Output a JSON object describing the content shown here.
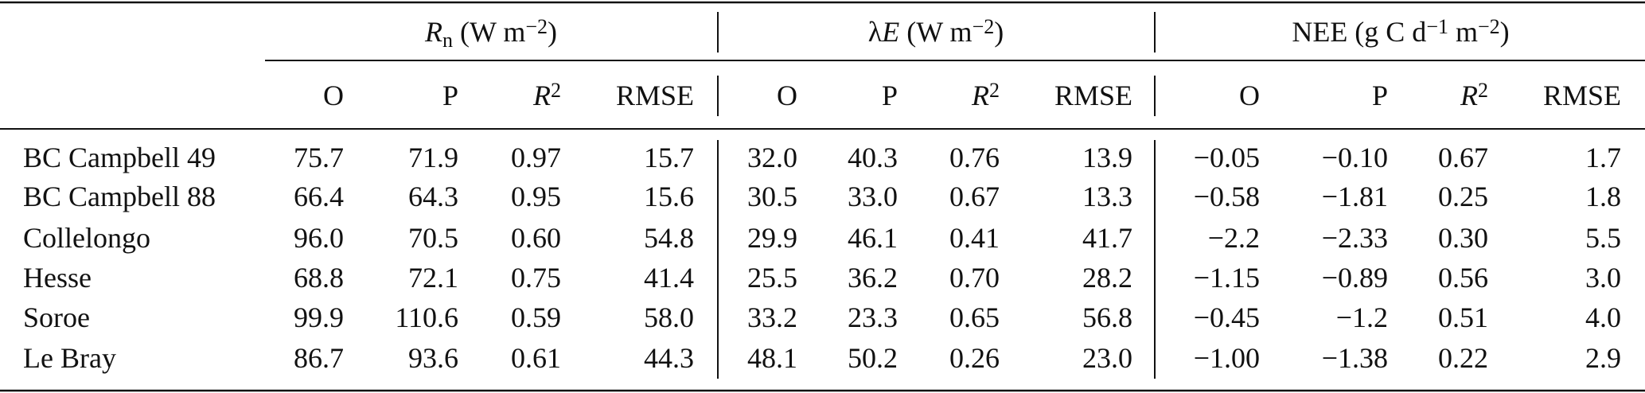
{
  "table": {
    "groups": [
      {
        "parts": [
          {
            "text": "R",
            "style": "italic"
          },
          {
            "text": "n",
            "style": "sub"
          },
          {
            "text": " (W m"
          },
          {
            "text": "−2",
            "style": "sup"
          },
          {
            "text": ")"
          }
        ]
      },
      {
        "parts": [
          {
            "text": "λ"
          },
          {
            "text": "E",
            "style": "italic"
          },
          {
            "text": " (W m"
          },
          {
            "text": "−2",
            "style": "sup"
          },
          {
            "text": ")"
          }
        ]
      },
      {
        "parts": [
          {
            "text": "NEE (g C d"
          },
          {
            "text": "−1",
            "style": "sup"
          },
          {
            "text": " m"
          },
          {
            "text": "−2",
            "style": "sup"
          },
          {
            "text": ")"
          }
        ]
      }
    ],
    "columns": [
      {
        "parts": [
          {
            "text": "O"
          }
        ]
      },
      {
        "parts": [
          {
            "text": "P"
          }
        ]
      },
      {
        "parts": [
          {
            "text": "R",
            "style": "italic"
          },
          {
            "text": "2",
            "style": "sup"
          }
        ]
      },
      {
        "parts": [
          {
            "text": "RMSE"
          }
        ]
      }
    ],
    "rows": [
      [
        "BC Campbell 49",
        "75.7",
        "71.9",
        "0.97",
        "15.7",
        "32.0",
        "40.3",
        "0.76",
        "13.9",
        "−0.05",
        "−0.10",
        "0.67",
        "1.7"
      ],
      [
        "BC Campbell 88",
        "66.4",
        "64.3",
        "0.95",
        "15.6",
        "30.5",
        "33.0",
        "0.67",
        "13.3",
        "−0.58",
        "−1.81",
        "0.25",
        "1.8"
      ],
      [
        "Collelongo",
        "96.0",
        "70.5",
        "0.60",
        "54.8",
        "29.9",
        "46.1",
        "0.41",
        "41.7",
        "−2.2",
        "−2.33",
        "0.30",
        "5.5"
      ],
      [
        "Hesse",
        "68.8",
        "72.1",
        "0.75",
        "41.4",
        "25.5",
        "36.2",
        "0.70",
        "28.2",
        "−1.15",
        "−0.89",
        "0.56",
        "3.0"
      ],
      [
        "Soroe",
        "99.9",
        "110.6",
        "0.59",
        "58.0",
        "33.2",
        "23.3",
        "0.65",
        "56.8",
        "−0.45",
        "−1.2",
        "0.51",
        "4.0"
      ],
      [
        "Le Bray",
        "86.7",
        "93.6",
        "0.61",
        "44.3",
        "48.1",
        "50.2",
        "0.26",
        "23.0",
        "−1.00",
        "−1.38",
        "0.22",
        "2.9"
      ]
    ]
  }
}
